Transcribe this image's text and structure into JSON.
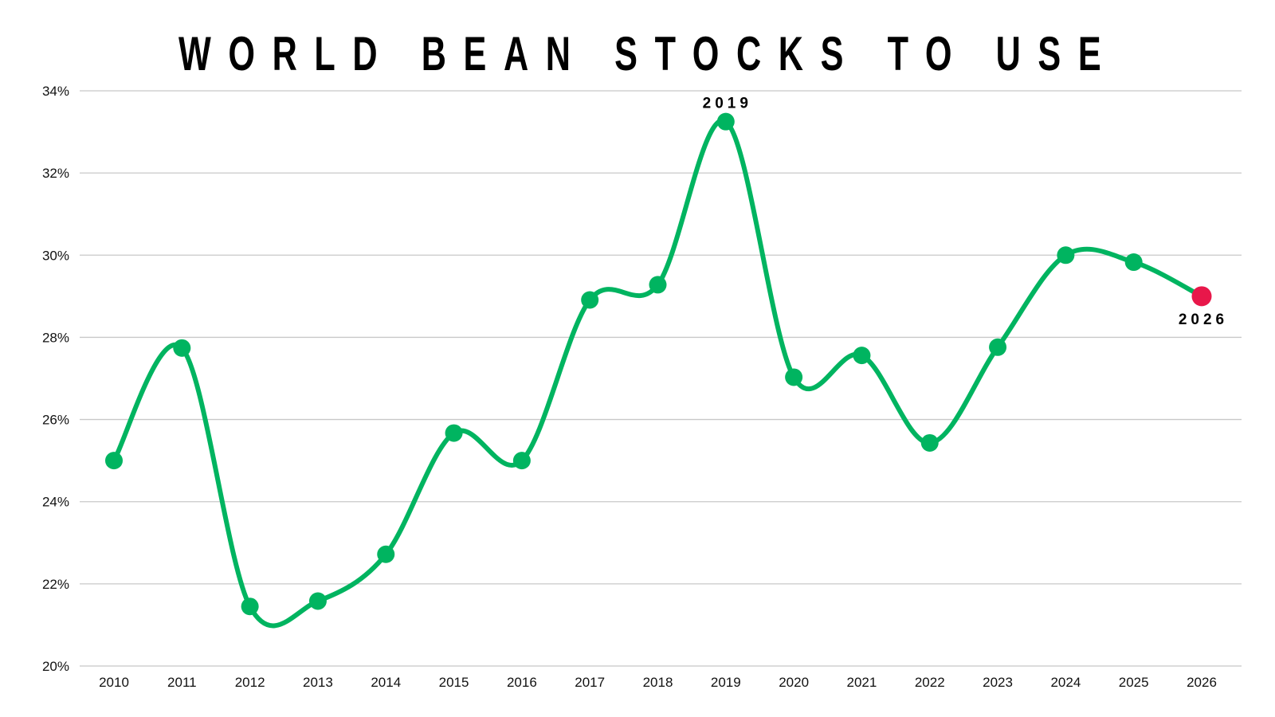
{
  "chart_data": {
    "type": "line",
    "title": "WORLD BEAN STOCKS TO USE",
    "xlabel": "",
    "ylabel": "",
    "x": [
      "2010",
      "2011",
      "2012",
      "2013",
      "2014",
      "2015",
      "2016",
      "2017",
      "2018",
      "2019",
      "2020",
      "2021",
      "2022",
      "2023",
      "2024",
      "2025",
      "2026"
    ],
    "values": [
      25.0,
      27.74,
      21.45,
      21.58,
      22.72,
      25.67,
      25.0,
      28.91,
      29.28,
      33.25,
      27.03,
      27.56,
      25.43,
      27.76,
      30.0,
      29.83,
      29.0
    ],
    "ylim": [
      20,
      34
    ],
    "yticks": [
      "20%",
      "22%",
      "24%",
      "26%",
      "28%",
      "30%",
      "32%",
      "34%"
    ],
    "ytick_values": [
      20,
      22,
      24,
      26,
      28,
      30,
      32,
      34
    ],
    "grid": true,
    "smooth": true,
    "line_color": "#00b460",
    "highlight_color": "#e8174a",
    "highlight_index": 16,
    "annotations": [
      {
        "label": "2019",
        "index": 9,
        "position": "above"
      },
      {
        "label": "2026",
        "index": 16,
        "position": "below"
      }
    ]
  }
}
